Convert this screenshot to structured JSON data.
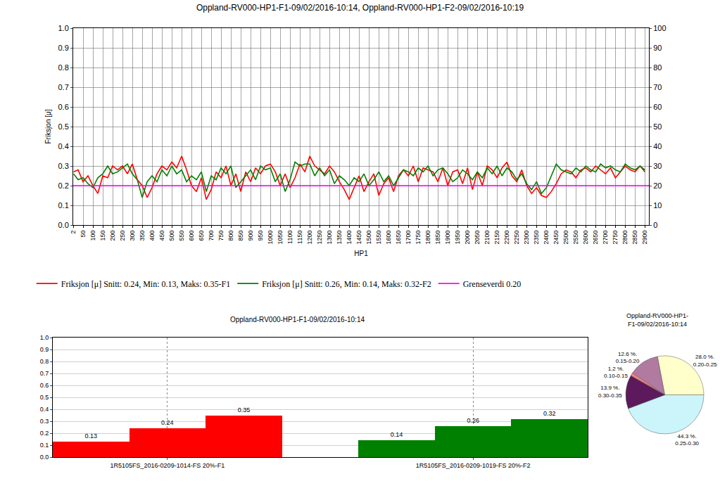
{
  "chart_data": [
    {
      "type": "line",
      "title": "Oppland-RV000-HP1-F1-09/02/2016-10:14, Oppland-RV000-HP1-F2-09/02/2016-10:19",
      "x_label": "HP1",
      "y_label": "Friksjon [μ]",
      "x": [
        2,
        25,
        50,
        75,
        100,
        125,
        150,
        175,
        200,
        225,
        250,
        275,
        300,
        325,
        350,
        375,
        400,
        425,
        450,
        475,
        500,
        525,
        550,
        575,
        600,
        625,
        650,
        675,
        700,
        725,
        750,
        775,
        800,
        825,
        850,
        875,
        900,
        925,
        950,
        975,
        1000,
        1025,
        1050,
        1075,
        1100,
        1125,
        1150,
        1175,
        1200,
        1225,
        1250,
        1275,
        1300,
        1325,
        1350,
        1375,
        1400,
        1425,
        1450,
        1475,
        1500,
        1525,
        1550,
        1575,
        1600,
        1625,
        1650,
        1675,
        1700,
        1725,
        1750,
        1775,
        1800,
        1825,
        1850,
        1875,
        1900,
        1925,
        1950,
        1975,
        2000,
        2025,
        2050,
        2075,
        2100,
        2125,
        2150,
        2175,
        2200,
        2225,
        2250,
        2275,
        2300,
        2325,
        2350,
        2375,
        2400,
        2425,
        2450,
        2475,
        2500,
        2525,
        2550,
        2575,
        2600,
        2625,
        2650,
        2675,
        2700,
        2725,
        2750,
        2775,
        2800,
        2825,
        2850,
        2875,
        2900
      ],
      "xlim": [
        0,
        2920
      ],
      "xticks": [
        2,
        50,
        100,
        150,
        200,
        250,
        300,
        350,
        400,
        450,
        500,
        550,
        600,
        650,
        700,
        750,
        800,
        850,
        900,
        950,
        1000,
        1050,
        1100,
        1150,
        1200,
        1250,
        1300,
        1350,
        1400,
        1450,
        1500,
        1550,
        1600,
        1650,
        1700,
        1750,
        1800,
        1850,
        1900,
        1950,
        2000,
        2050,
        2100,
        2150,
        2200,
        2250,
        2300,
        2350,
        2400,
        2450,
        2500,
        2550,
        2600,
        2650,
        2700,
        2750,
        2800,
        2850,
        2900
      ],
      "ylim": [
        0,
        1
      ],
      "yticks": [
        {
          "value": 0,
          "label": "0.0"
        },
        0.1,
        0.2,
        0.3,
        0.4,
        0.5,
        0.6,
        0.7,
        0.8,
        0.9,
        {
          "value": 1,
          "label": "1.0"
        }
      ],
      "y2lim": [
        0,
        100
      ],
      "y2ticks": [
        0,
        10,
        20,
        30,
        40,
        50,
        60,
        70,
        80,
        90,
        100
      ],
      "grid": true,
      "legend": "bottom",
      "series": [
        {
          "name": "Friksjon [μ] Snitt: 0.24, Min: 0.13, Maks: 0.35-F1",
          "color": "#ff0000",
          "values": [
            0.27,
            0.28,
            0.22,
            0.25,
            0.2,
            0.16,
            0.25,
            0.24,
            0.3,
            0.28,
            0.3,
            0.26,
            0.31,
            0.23,
            0.2,
            0.14,
            0.19,
            0.26,
            0.3,
            0.28,
            0.32,
            0.29,
            0.35,
            0.28,
            0.2,
            0.17,
            0.24,
            0.13,
            0.18,
            0.27,
            0.24,
            0.3,
            0.2,
            0.26,
            0.17,
            0.27,
            0.22,
            0.29,
            0.26,
            0.3,
            0.31,
            0.27,
            0.2,
            0.26,
            0.19,
            0.24,
            0.31,
            0.27,
            0.35,
            0.3,
            0.28,
            0.26,
            0.3,
            0.27,
            0.22,
            0.18,
            0.13,
            0.19,
            0.25,
            0.17,
            0.22,
            0.26,
            0.15,
            0.21,
            0.24,
            0.17,
            0.25,
            0.28,
            0.25,
            0.3,
            0.22,
            0.29,
            0.28,
            0.27,
            0.22,
            0.29,
            0.2,
            0.27,
            0.28,
            0.21,
            0.29,
            0.18,
            0.27,
            0.2,
            0.3,
            0.28,
            0.24,
            0.29,
            0.32,
            0.25,
            0.22,
            0.28,
            0.2,
            0.16,
            0.19,
            0.15,
            0.14,
            0.17,
            0.21,
            0.26,
            0.28,
            0.27,
            0.24,
            0.28,
            0.29,
            0.27,
            0.3,
            0.28,
            0.26,
            0.29,
            0.24,
            0.27,
            0.3,
            0.28,
            0.27,
            0.3,
            0.28
          ]
        },
        {
          "name": "Friksjon [μ] Snitt: 0.26, Min: 0.14, Maks: 0.32-F2",
          "color": "#008000",
          "values": [
            0.26,
            0.23,
            0.24,
            0.21,
            0.19,
            0.24,
            0.26,
            0.3,
            0.26,
            0.27,
            0.29,
            0.31,
            0.26,
            0.23,
            0.14,
            0.22,
            0.25,
            0.22,
            0.28,
            0.25,
            0.3,
            0.26,
            0.28,
            0.22,
            0.25,
            0.23,
            0.27,
            0.17,
            0.25,
            0.23,
            0.29,
            0.26,
            0.3,
            0.19,
            0.22,
            0.25,
            0.28,
            0.23,
            0.3,
            0.28,
            0.29,
            0.22,
            0.26,
            0.17,
            0.23,
            0.32,
            0.3,
            0.31,
            0.31,
            0.25,
            0.29,
            0.25,
            0.28,
            0.21,
            0.25,
            0.23,
            0.2,
            0.24,
            0.22,
            0.26,
            0.2,
            0.23,
            0.27,
            0.22,
            0.25,
            0.2,
            0.24,
            0.28,
            0.27,
            0.25,
            0.29,
            0.27,
            0.3,
            0.25,
            0.28,
            0.29,
            0.26,
            0.22,
            0.24,
            0.28,
            0.26,
            0.23,
            0.27,
            0.24,
            0.29,
            0.26,
            0.3,
            0.25,
            0.29,
            0.27,
            0.23,
            0.26,
            0.21,
            0.18,
            0.22,
            0.16,
            0.19,
            0.25,
            0.31,
            0.28,
            0.27,
            0.26,
            0.29,
            0.27,
            0.3,
            0.28,
            0.27,
            0.31,
            0.29,
            0.3,
            0.28,
            0.27,
            0.31,
            0.29,
            0.28,
            0.3,
            0.27
          ]
        },
        {
          "name": "Grenseverdi 0.20",
          "color": "#ff00ff",
          "x": [
            0,
            2920
          ],
          "values": [
            0.2,
            0.2
          ]
        }
      ]
    },
    {
      "type": "bar",
      "title": "Oppland-RV000-HP1-F1-09/02/2016-10:14",
      "categories": [
        null,
        "1R5105FS_2016-0209-1014-FS 20%-F1",
        null,
        null,
        null,
        "1R5105FS_2016-0209-1019-FS 20%-F2",
        null
      ],
      "values": [
        0.13,
        0.24,
        0.35,
        null,
        0.14,
        0.26,
        0.32
      ],
      "colors": [
        "#ff0000",
        "#ff0000",
        "#ff0000",
        null,
        "#008000",
        "#008000",
        "#008000"
      ],
      "ylim": [
        0,
        1
      ],
      "yticks": [
        {
          "value": 0,
          "label": "0.0"
        },
        0.1,
        0.2,
        0.3,
        0.4,
        0.5,
        0.6,
        0.7,
        0.8,
        0.9,
        {
          "value": 1,
          "label": "1.0"
        }
      ],
      "grid": true,
      "data_labels": true
    },
    {
      "type": "pie",
      "title": "Oppland-RV000-HP1-\nF1-09/02/2016-10:14",
      "categories": [
        "0.25-0.30",
        "0.20-0.25",
        "0.15-0.20",
        "0.10-0.15",
        "0.30-0.35"
      ],
      "values": [
        44.3,
        28.0,
        12.6,
        1.2,
        13.9
      ],
      "value_labels": [
        "44.3 %.",
        "28.0 %.",
        "12.6 %.",
        "1.2 %.",
        "13.9 %."
      ],
      "colors": [
        "#ccf4fb",
        "#ffffcc",
        "#b07aa1",
        "#ff8080",
        "#5c1a5c"
      ]
    }
  ]
}
